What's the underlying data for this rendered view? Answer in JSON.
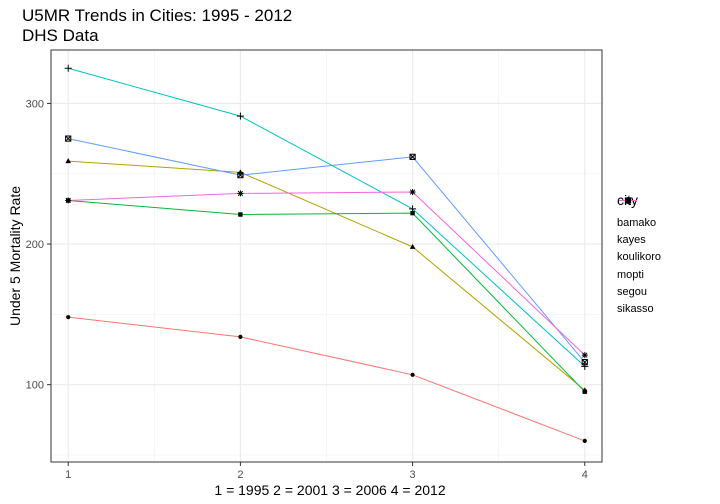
{
  "chart_data": {
    "type": "line",
    "title": "U5MR Trends in Cities: 1995 - 2012",
    "subtitle": "DHS Data",
    "xlabel": "",
    "ylabel": "Under 5 Mortality Rate",
    "x": [
      1,
      2,
      3,
      4
    ],
    "x_tick_labels": [
      "1",
      "2",
      "3",
      "4"
    ],
    "y_tick_labels": [
      "100",
      "200",
      "300"
    ],
    "y_ticks": [
      100,
      200,
      300
    ],
    "xlim": [
      0.9,
      4.1
    ],
    "ylim": [
      45,
      338
    ],
    "grid": true,
    "x_note": "1 = 1995       2 = 2001       3 = 2006       4 = 2012",
    "legend": {
      "title": "city",
      "placement": "right"
    },
    "series": [
      {
        "name": "bamako",
        "color": "#F8766D",
        "marker": "circle",
        "values": [
          148,
          134,
          107,
          60
        ]
      },
      {
        "name": "kayes",
        "color": "#B79F00",
        "marker": "triangle",
        "values": [
          259,
          251,
          198,
          96
        ]
      },
      {
        "name": "koulikoro",
        "color": "#00BA38",
        "marker": "square",
        "values": [
          231,
          221,
          222,
          95
        ]
      },
      {
        "name": "mopti",
        "color": "#00BFC4",
        "marker": "plus",
        "values": [
          325,
          291,
          225,
          113
        ]
      },
      {
        "name": "segou",
        "color": "#619CFF",
        "marker": "square-cross",
        "values": [
          275,
          249,
          262,
          116
        ]
      },
      {
        "name": "sikasso",
        "color": "#F564E3",
        "marker": "star",
        "values": [
          231,
          236,
          237,
          121
        ]
      }
    ]
  }
}
